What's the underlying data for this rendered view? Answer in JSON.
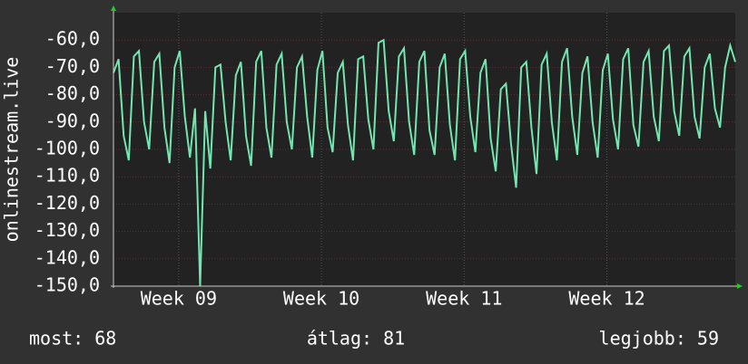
{
  "chart_data": {
    "type": "line",
    "y_label": "onlinestream.live",
    "x": [
      0,
      0.25,
      0.5,
      0.75,
      1,
      1.25,
      1.5,
      1.75,
      2,
      2.25,
      2.5,
      2.75,
      3,
      3.25,
      3.5,
      3.75,
      4,
      4.25,
      4.5,
      4.75,
      5,
      5.25,
      5.5,
      5.75,
      6,
      6.25,
      6.5,
      6.75,
      7,
      7.25,
      7.5,
      7.75,
      8,
      8.25,
      8.5,
      8.75,
      9,
      9.25,
      9.5,
      9.75,
      10,
      10.25,
      10.5,
      10.75,
      11,
      11.25,
      11.5,
      11.75,
      12,
      12.25,
      12.5,
      12.75,
      13,
      13.25,
      13.5,
      13.75,
      14,
      14.25,
      14.5,
      14.75,
      15,
      15.25,
      15.5,
      15.75,
      16,
      16.25,
      16.5,
      16.75,
      17,
      17.25,
      17.5,
      17.75,
      18,
      18.25,
      18.5,
      18.75,
      19,
      19.25,
      19.5,
      19.75,
      20,
      20.25,
      20.5,
      20.75,
      21,
      21.25,
      21.5,
      21.75,
      22,
      22.25,
      22.5,
      22.75,
      23,
      23.25,
      23.5,
      23.75,
      24,
      24.25,
      24.5,
      24.75,
      25,
      25.25,
      25.5,
      25.75,
      26,
      26.25,
      26.5,
      26.75,
      27,
      27.25,
      27.5,
      27.75,
      28,
      28.25,
      28.5,
      28.75,
      29,
      29.25,
      29.5,
      29.75,
      30,
      30.25,
      30.5
    ],
    "series": [
      {
        "name": "onlinestream.live",
        "color": "#72e6b0",
        "values": [
          -72,
          -67,
          -95,
          -104,
          -66,
          -64,
          -90,
          -100,
          -68,
          -65,
          -92,
          -105,
          -70,
          -64,
          -88,
          -103,
          -85,
          -150,
          -86,
          -107,
          -70,
          -69,
          -90,
          -104,
          -73,
          -68,
          -95,
          -106,
          -68,
          -64,
          -92,
          -103,
          -69,
          -65,
          -90,
          -100,
          -70,
          -66,
          -88,
          -103,
          -71,
          -64,
          -92,
          -101,
          -72,
          -68,
          -91,
          -104,
          -67,
          -66,
          -89,
          -100,
          -61,
          -60,
          -86,
          -97,
          -66,
          -63,
          -90,
          -102,
          -68,
          -64,
          -93,
          -102,
          -70,
          -65,
          -91,
          -104,
          -67,
          -64,
          -88,
          -101,
          -72,
          -67,
          -96,
          -108,
          -78,
          -76,
          -98,
          -114,
          -70,
          -68,
          -92,
          -109,
          -69,
          -65,
          -90,
          -104,
          -68,
          -63,
          -88,
          -102,
          -72,
          -66,
          -90,
          -103,
          -71,
          -65,
          -89,
          -100,
          -67,
          -63,
          -91,
          -99,
          -68,
          -64,
          -88,
          -97,
          -64,
          -62,
          -86,
          -95,
          -66,
          -63,
          -88,
          -96,
          -70,
          -65,
          -85,
          -92,
          -70,
          -62,
          -68
        ]
      }
    ],
    "xlim": [
      0,
      30.5
    ],
    "xticks": [
      {
        "value": 3.2,
        "label": "Week 09"
      },
      {
        "value": 10.2,
        "label": "Week 10"
      },
      {
        "value": 17.2,
        "label": "Week 11"
      },
      {
        "value": 24.2,
        "label": "Week 12"
      }
    ],
    "ylim": [
      -150,
      -50
    ],
    "yticks": [
      {
        "value": -60,
        "label": "-60,0"
      },
      {
        "value": -70,
        "label": "-70,0"
      },
      {
        "value": -80,
        "label": "-80,0"
      },
      {
        "value": -90,
        "label": "-90,0"
      },
      {
        "value": -100,
        "label": "-100,0"
      },
      {
        "value": -110,
        "label": "-110,0"
      },
      {
        "value": -120,
        "label": "-120,0"
      },
      {
        "value": -130,
        "label": "-130,0"
      },
      {
        "value": -140,
        "label": "-140,0"
      },
      {
        "value": -150,
        "label": "-150,0"
      }
    ],
    "grid": true,
    "footer": [
      "most: 68",
      "átlag: 81",
      "legjobb: 59"
    ]
  }
}
